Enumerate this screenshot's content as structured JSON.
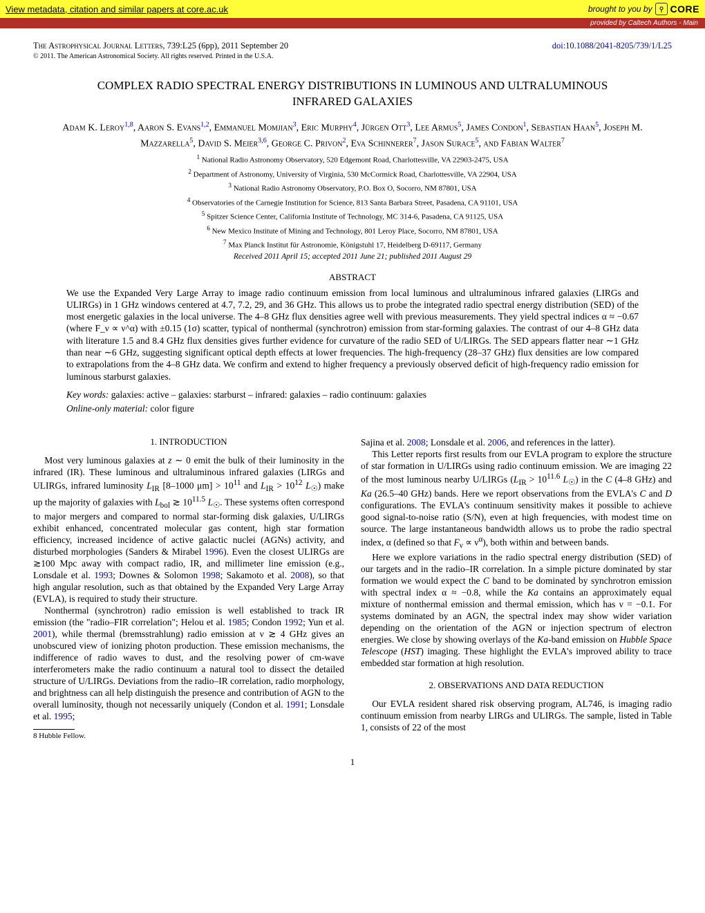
{
  "banner": {
    "left_text": "View metadata, citation and similar papers at core.ac.uk",
    "brought_text": "brought to you by",
    "core_text": "CORE",
    "provided_text": "provided by Caltech Authors - Main"
  },
  "header": {
    "journal": "The Astrophysical Journal Letters",
    "citation": ", 739:L25 (6pp), 2011 September 20",
    "doi": "doi:10.1088/2041-8205/739/1/L25",
    "copyright": "© 2011. The American Astronomical Society. All rights reserved. Printed in the U.S.A."
  },
  "title": "COMPLEX RADIO SPECTRAL ENERGY DISTRIBUTIONS IN LUMINOUS AND ULTRALUMINOUS INFRARED GALAXIES",
  "authors_html": "Adam K. Leroy<sup>1,8</sup>, Aaron S. Evans<sup>1,2</sup>, Emmanuel Momjian<sup>3</sup>, Eric Murphy<sup>4</sup>, Jürgen Ott<sup>3</sup>, Lee Armus<sup>5</sup>, James Condon<sup>1</sup>, Sebastian Haan<sup>5</sup>, Joseph M. Mazzarella<sup>5</sup>, David S. Meier<sup>3,6</sup>, George C. Privon<sup>2</sup>, Eva Schinnerer<sup>7</sup>, Jason Surace<sup>5</sup>, and Fabian Walter<sup>7</sup>",
  "affiliations": [
    "<sup>1</sup> National Radio Astronomy Observatory, 520 Edgemont Road, Charlottesville, VA 22903-2475, USA",
    "<sup>2</sup> Department of Astronomy, University of Virginia, 530 McCormick Road, Charlottesville, VA 22904, USA",
    "<sup>3</sup> National Radio Astronomy Observatory, P.O. Box O, Socorro, NM 87801, USA",
    "<sup>4</sup> Observatories of the Carnegie Institution for Science, 813 Santa Barbara Street, Pasadena, CA 91101, USA",
    "<sup>5</sup> Spitzer Science Center, California Institute of Technology, MC 314-6, Pasadena, CA 91125, USA",
    "<sup>6</sup> New Mexico Institute of Mining and Technology, 801 Leroy Place, Socorro, NM 87801, USA",
    "<sup>7</sup> Max Planck Institut für Astronomie, Königstuhl 17, Heidelberg D-69117, Germany"
  ],
  "dates": "Received 2011 April 15; accepted 2011 June 21; published 2011 August 29",
  "abstract_heading": "ABSTRACT",
  "abstract": "We use the Expanded Very Large Array to image radio continuum emission from local luminous and ultraluminous infrared galaxies (LIRGs and ULIRGs) in 1 GHz windows centered at 4.7, 7.2, 29, and 36 GHz. This allows us to probe the integrated radio spectral energy distribution (SED) of the most energetic galaxies in the local universe. The 4–8 GHz flux densities agree well with previous measurements. They yield spectral indices α ≈ −0.67 (where F_ν ∝ ν^α) with ±0.15 (1σ) scatter, typical of nonthermal (synchrotron) emission from star-forming galaxies. The contrast of our 4–8 GHz data with literature 1.5 and 8.4 GHz flux densities gives further evidence for curvature of the radio SED of U/LIRGs. The SED appears flatter near ∼1 GHz than near ∼6 GHz, suggesting significant optical depth effects at lower frequencies. The high-frequency (28–37 GHz) flux densities are low compared to extrapolations from the 4–8 GHz data. We confirm and extend to higher frequency a previously observed deficit of high-frequency radio emission for luminous starburst galaxies.",
  "keywords_label": "Key words:",
  "keywords": " galaxies: active – galaxies: starburst – infrared: galaxies – radio continuum: galaxies",
  "online_label": "Online-only material:",
  "online_text": " color figure",
  "section1": {
    "heading": "1. INTRODUCTION",
    "p1_html": "Most very luminous galaxies at <i>z</i> ∼ 0 emit the bulk of their luminosity in the infrared (IR). These luminous and ultraluminous infrared galaxies (LIRGs and ULIRGs, infrared luminosity <i>L</i><sub>IR</sub> [8–1000 μm] &gt; 10<sup>11</sup> and <i>L</i><sub>IR</sub> &gt; 10<sup>12</sup> <i>L</i><sub>☉</sub>) make up the majority of galaxies with <i>L</i><sub>bol</sub> ≳ 10<sup>11.5</sup> <i>L</i><sub>☉</sub>. These systems often correspond to major mergers and compared to normal star-forming disk galaxies, U/LIRGs exhibit enhanced, concentrated molecular gas content, high star formation efficiency, increased incidence of active galactic nuclei (AGNs) activity, and disturbed morphologies (Sanders &amp; Mirabel <span class='cite-link'>1996</span>). Even the closest ULIRGs are ≳100 Mpc away with compact radio, IR, and millimeter line emission (e.g., Lonsdale et al. <span class='cite-link'>1993</span>; Downes &amp; Solomon <span class='cite-link'>1998</span>; Sakamoto et al. <span class='cite-link'>2008</span>), so that high angular resolution, such as that obtained by the Expanded Very Large Array (EVLA), is required to study their structure.",
    "p2_html": "Nonthermal (synchrotron) radio emission is well established to track IR emission (the \"radio–FIR correlation\"; Helou et al. <span class='cite-link'>1985</span>; Condon <span class='cite-link'>1992</span>; Yun et al. <span class='cite-link'>2001</span>), while thermal (bremsstrahlung) radio emission at ν ≳ 4 GHz gives an unobscured view of ionizing photon production. These emission mechanisms, the indifference of radio waves to dust, and the resolving power of cm-wave interferometers make the radio continuum a natural tool to dissect the detailed structure of U/LIRGs. Deviations from the radio–IR correlation, radio morphology, and brightness can all help distinguish the presence and contribution of AGN to the overall luminosity, though not necessarily uniquely (Condon et al. <span class='cite-link'>1991</span>; Lonsdale et al. <span class='cite-link'>1995</span>;"
  },
  "col2": {
    "p1_html": "Sajina et al. <span class='cite-link'>2008</span>; Lonsdale et al. <span class='cite-link'>2006</span>, and references in the latter).",
    "p2_html": "This Letter reports first results from our EVLA program to explore the structure of star formation in U/LIRGs using radio continuum emission. We are imaging 22 of the most luminous nearby U/LIRGs (<i>L</i><sub>IR</sub> &gt; 10<sup>11.6</sup> <i>L</i><sub>☉</sub>) in the <i>C</i> (4–8 GHz) and <i>Ka</i> (26.5–40 GHz) bands. Here we report observations from the EVLA's <i>C</i> and <i>D</i> configurations. The EVLA's continuum sensitivity makes it possible to achieve good signal-to-noise ratio (S/N), even at high frequencies, with modest time on source. The large instantaneous bandwidth allows us to probe the radio spectral index, α (defined so that <i>F</i><sub>ν</sub> ∝ ν<sup>α</sup>), both within and between bands.",
    "p3_html": "Here we explore variations in the radio spectral energy distribution (SED) of our targets and in the radio–IR correlation. In a simple picture dominated by star formation we would expect the <i>C</i> band to be dominated by synchrotron emission with spectral index α ≈ −0.8, while the <i>Ka</i> contains an approximately equal mixture of nonthermal emission and thermal emission, which has ν = −0.1. For systems dominated by an AGN, the spectral index may show wider variation depending on the orientation of the AGN or injection spectrum of electron energies. We close by showing overlays of the <i>Ka</i>-band emission on <i>Hubble Space Telescope</i> (<i>HST</i>) imaging. These highlight the EVLA's improved ability to trace embedded star formation at high resolution."
  },
  "section2": {
    "heading": "2. OBSERVATIONS AND DATA REDUCTION",
    "p1_html": "Our EVLA resident shared risk observing program, AL746, is imaging radio continuum emission from nearby LIRGs and ULIRGs. The sample, listed in Table <span class='cite-link'>1</span>, consists of 22 of the most"
  },
  "footnote": "8   Hubble Fellow.",
  "page_num": "1"
}
